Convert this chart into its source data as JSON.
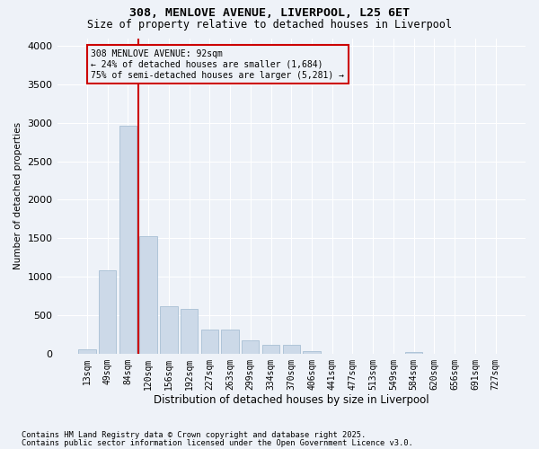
{
  "title1": "308, MENLOVE AVENUE, LIVERPOOL, L25 6ET",
  "title2": "Size of property relative to detached houses in Liverpool",
  "xlabel": "Distribution of detached houses by size in Liverpool",
  "ylabel": "Number of detached properties",
  "annotation_line1": "308 MENLOVE AVENUE: 92sqm",
  "annotation_line2": "← 24% of detached houses are smaller (1,684)",
  "annotation_line3": "75% of semi-detached houses are larger (5,281) →",
  "bar_color": "#ccd9e8",
  "bar_edge_color": "#a8bfd4",
  "vline_color": "#cc0000",
  "annotation_box_edge_color": "#cc0000",
  "background_color": "#eef2f8",
  "grid_color": "#ffffff",
  "categories": [
    "13sqm",
    "49sqm",
    "84sqm",
    "120sqm",
    "156sqm",
    "192sqm",
    "227sqm",
    "263sqm",
    "299sqm",
    "334sqm",
    "370sqm",
    "406sqm",
    "441sqm",
    "477sqm",
    "513sqm",
    "549sqm",
    "584sqm",
    "620sqm",
    "656sqm",
    "691sqm",
    "727sqm"
  ],
  "values": [
    55,
    1080,
    2960,
    1530,
    620,
    580,
    310,
    310,
    170,
    115,
    110,
    35,
    0,
    0,
    0,
    0,
    25,
    0,
    0,
    0,
    0
  ],
  "ylim": [
    0,
    4100
  ],
  "yticks": [
    0,
    500,
    1000,
    1500,
    2000,
    2500,
    3000,
    3500,
    4000
  ],
  "vline_x_index": 2.5,
  "footer1": "Contains HM Land Registry data © Crown copyright and database right 2025.",
  "footer2": "Contains public sector information licensed under the Open Government Licence v3.0."
}
